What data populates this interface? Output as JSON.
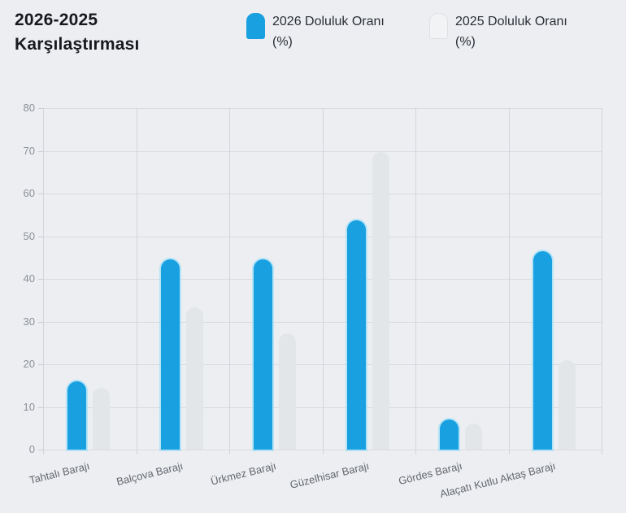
{
  "header": {
    "title_line1": "2026-2025",
    "title_line2": "Karşılaştırması"
  },
  "legend": {
    "items": [
      {
        "label": "2026 Doluluk Oranı (%)",
        "swatch_color": "#18a0e1",
        "swatch_border": "#18a0e1",
        "style": "filled"
      },
      {
        "label": "2025 Doluluk Oranı (%)",
        "swatch_color": "#f1f3f5",
        "swatch_border": "#dde0e4",
        "style": "outlined"
      }
    ]
  },
  "colors": {
    "background": "#edeef1",
    "gridline": "#d8dbdf",
    "axis_text": "#8b9098",
    "category_text": "#62676f",
    "series_2026": "#18a0e1",
    "series_2026_glow": "#97def9",
    "series_2025": "#e3e6e9"
  },
  "chart_data": {
    "type": "bar",
    "title": "2026-2025 Karşılaştırması",
    "categories": [
      "Tahtalı Barajı",
      "Balçova Barajı",
      "Ürkmez Barajı",
      "Güzelhisar Barajı",
      "Gördes Barajı",
      "Alaçatı Kutlu Aktaş Barajı"
    ],
    "series": [
      {
        "name": "2026 Doluluk Oranı (%)",
        "color": "#18a0e1",
        "values": [
          16,
          44.5,
          44.5,
          53.8,
          7.1,
          46.4
        ]
      },
      {
        "name": "2025 Doluluk Oranı (%)",
        "color": "#e3e6e9",
        "values": [
          14.5,
          33.3,
          27.2,
          69.7,
          6.1,
          20.9
        ]
      }
    ],
    "xlabel": "",
    "ylabel": "",
    "ylim": [
      0,
      80
    ],
    "yticks": [
      0,
      10,
      20,
      30,
      40,
      50,
      60,
      70,
      80
    ],
    "grid": true,
    "legend_position": "top",
    "x_label_rotation_deg": -14
  }
}
